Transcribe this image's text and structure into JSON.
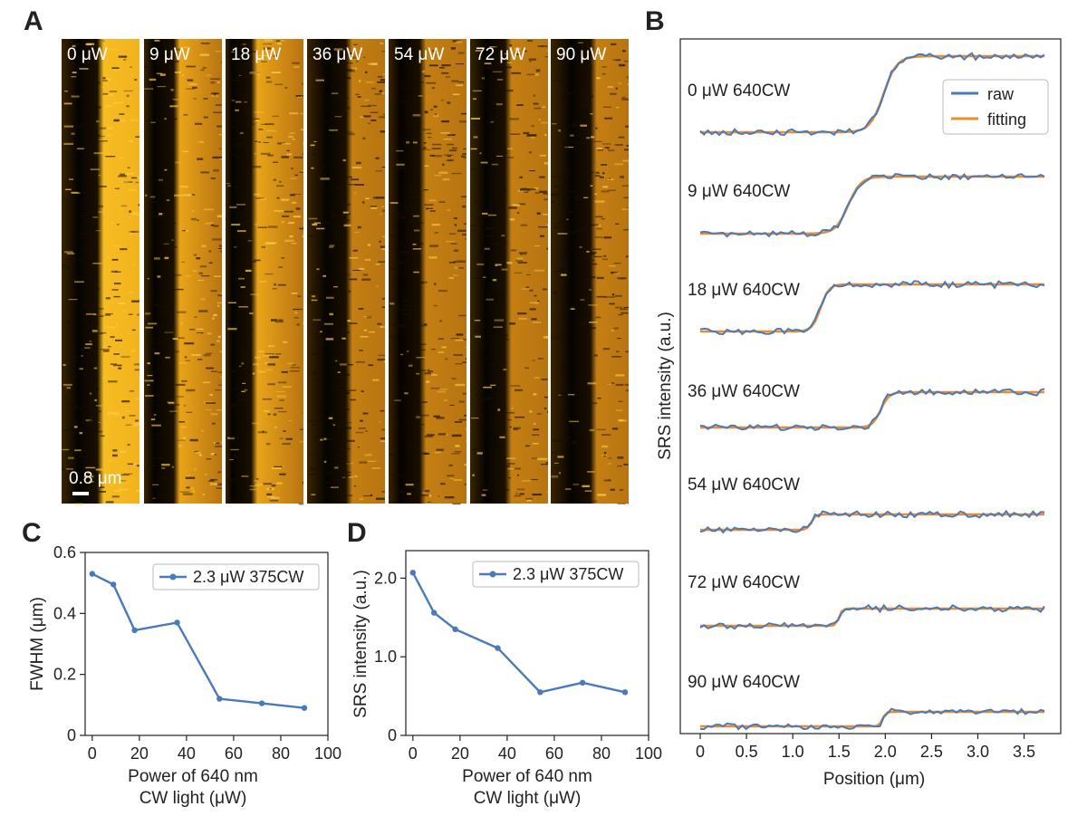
{
  "panel_letters": {
    "a": "A",
    "b": "B",
    "c": "C",
    "d": "D"
  },
  "colors": {
    "raw": "#4a7ab8",
    "fitting": "#ee8b2c",
    "marker_line": "#4a7ab8",
    "strip_dark": "#000000",
    "strip_bright": "#f3b318"
  },
  "chart_data": [
    {
      "id": "A",
      "type": "heatmap",
      "panels": [
        {
          "label": "0 μW",
          "power": 0,
          "contrast": 1.0
        },
        {
          "label": "9 μW",
          "power": 9,
          "contrast": 0.9
        },
        {
          "label": "18 μW",
          "power": 18,
          "contrast": 0.8
        },
        {
          "label": "36 μW",
          "power": 36,
          "contrast": 0.65
        },
        {
          "label": "54 μW",
          "power": 54,
          "contrast": 0.55
        },
        {
          "label": "72 μW",
          "power": 72,
          "contrast": 0.55
        },
        {
          "label": "90 μW",
          "power": 90,
          "contrast": 0.5
        }
      ],
      "scalebar": "0.8 μm"
    },
    {
      "id": "B",
      "type": "line",
      "xlabel": "Position (μm)",
      "ylabel": "SRS intensity (a.u.)",
      "xlim": [
        -0.05,
        3.8
      ],
      "xticks": [
        "0",
        "0.5",
        "1.0",
        "1.5",
        "2.0",
        "2.5",
        "3.0",
        "3.5"
      ],
      "xtick_values": [
        0,
        0.5,
        1.0,
        1.5,
        2.0,
        2.5,
        3.0,
        3.5
      ],
      "legend": {
        "raw": "raw",
        "fitting": "fitting",
        "placement": "top-right"
      },
      "series": [
        {
          "label": "0 μW 640CW",
          "edge_center": 1.98,
          "edge_width": 0.16,
          "step": 1.0
        },
        {
          "label": "9 μW 640CW",
          "edge_center": 1.6,
          "edge_width": 0.15,
          "step": 0.72
        },
        {
          "label": "18 μW 640CW",
          "edge_center": 1.3,
          "edge_width": 0.1,
          "step": 0.62
        },
        {
          "label": "36 μW 640CW",
          "edge_center": 1.95,
          "edge_width": 0.1,
          "step": 0.46
        },
        {
          "label": "54 μW 640CW",
          "edge_center": 1.2,
          "edge_width": 0.05,
          "step": 0.19
        },
        {
          "label": "72 μW 640CW",
          "edge_center": 1.5,
          "edge_width": 0.04,
          "step": 0.23
        },
        {
          "label": "90 μW 640CW",
          "edge_center": 1.97,
          "edge_width": 0.04,
          "step": 0.19
        }
      ]
    },
    {
      "id": "C",
      "type": "line",
      "xlabel_line1": "Power of 640 nm",
      "xlabel_line2": "CW light (μW)",
      "ylabel": "FWHM (μm)",
      "xlim": [
        -3,
        100
      ],
      "ylim": [
        0,
        0.6
      ],
      "xticks": [
        "0",
        "20",
        "40",
        "60",
        "80",
        "100"
      ],
      "xtick_values": [
        0,
        20,
        40,
        60,
        80,
        100
      ],
      "yticks": [
        "0",
        "0.2",
        "0.4",
        "0.6"
      ],
      "ytick_values": [
        0,
        0.2,
        0.4,
        0.6
      ],
      "legend": "2.3 μW 375CW",
      "x": [
        0,
        9,
        18,
        36,
        54,
        72,
        90
      ],
      "y": [
        0.53,
        0.495,
        0.345,
        0.37,
        0.12,
        0.105,
        0.09
      ]
    },
    {
      "id": "D",
      "type": "line",
      "xlabel_line1": "Power of 640 nm",
      "xlabel_line2": "CW light (μW)",
      "ylabel": "SRS intensity (a.u.)",
      "xlim": [
        -3,
        100
      ],
      "ylim": [
        0,
        2.35
      ],
      "xticks": [
        "0",
        "20",
        "40",
        "60",
        "80",
        "100"
      ],
      "xtick_values": [
        0,
        20,
        40,
        60,
        80,
        100
      ],
      "yticks": [
        "0",
        "1.0",
        "2.0"
      ],
      "ytick_values": [
        0,
        1.0,
        2.0
      ],
      "legend": "2.3 μW 375CW",
      "x": [
        0,
        9,
        18,
        36,
        54,
        72,
        90
      ],
      "y": [
        2.07,
        1.56,
        1.35,
        1.11,
        0.55,
        0.67,
        0.55
      ]
    }
  ]
}
